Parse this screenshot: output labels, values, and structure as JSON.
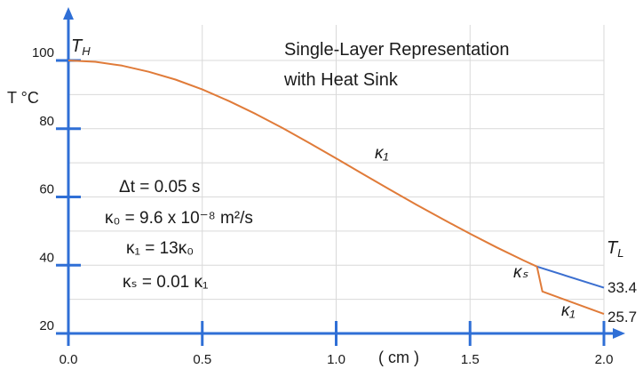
{
  "chart_data": {
    "type": "line",
    "title_lines": [
      "Single-Layer Representation",
      "with Heat Sink"
    ],
    "xlabel": "( cm )",
    "ylabel": "T °C",
    "xlim": [
      0.0,
      2.0
    ],
    "ylim": [
      20,
      100
    ],
    "x_ticks": [
      "0.0",
      "0.5",
      "1.0",
      "1.5",
      "2.0"
    ],
    "y_ticks": [
      "20",
      "40",
      "60",
      "80",
      "100"
    ],
    "grid": true,
    "colors": {
      "orange": "#e07b39",
      "blue": "#3b6fd0",
      "axis": "#2f6fd6",
      "grid": "#d9d9d9"
    },
    "series": [
      {
        "color": "orange",
        "x": [
          0.0,
          0.1,
          0.2,
          0.3,
          0.4,
          0.5,
          0.6,
          0.7,
          0.8,
          0.9,
          1.0,
          1.1,
          1.2,
          1.3,
          1.4,
          1.5,
          1.6,
          1.7,
          1.75
        ],
        "y": [
          100,
          99.6,
          98.5,
          96.7,
          94.4,
          91.5,
          88.1,
          84.3,
          80.2,
          75.8,
          71.3,
          66.7,
          62.2,
          57.7,
          53.4,
          49.2,
          45.2,
          41.4,
          39.6
        ]
      },
      {
        "color": "blue",
        "x": [
          1.75,
          2.0
        ],
        "y": [
          39.6,
          33.4
        ]
      },
      {
        "color": "orange",
        "x": [
          1.75,
          1.77,
          2.0
        ],
        "y": [
          39.6,
          32.3,
          25.7
        ]
      }
    ],
    "end_labels": {
      "top_left": "T_H",
      "top_right": "T_L",
      "upper_value": "33.4",
      "lower_value": "25.7"
    },
    "curve_labels": {
      "main": "κ₁",
      "sink": "κₛ",
      "lower": "κ₁"
    },
    "annotations": [
      "Δt = 0.05 s",
      "κ₀ = 9.6 x 10⁻⁸ m²/s",
      "κ₁ = 13κ₀",
      "κₛ = 0.01 κ₁"
    ]
  }
}
